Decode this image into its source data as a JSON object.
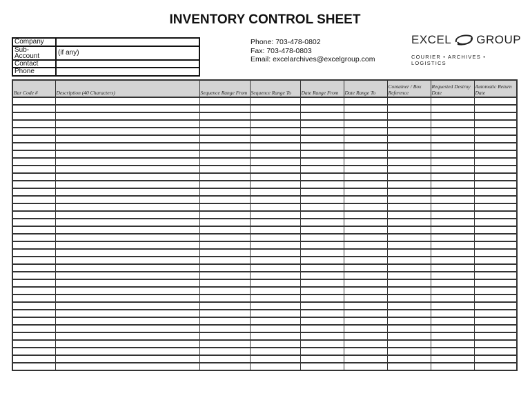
{
  "title": "INVENTORY CONTROL SHEET",
  "info_fields": [
    {
      "label": "Company",
      "value": ""
    },
    {
      "label": "Sub-Account",
      "value": "(if any)"
    },
    {
      "label": "Contact",
      "value": ""
    },
    {
      "label": "Phone",
      "value": ""
    }
  ],
  "contact": {
    "phone": "Phone:  703-478-0802",
    "fax": "Fax:  703-478-0803",
    "email": "Email: excelarchives@excelgroup.com"
  },
  "logo": {
    "left": "EXCEL",
    "right": "GROUP",
    "tagline": "COURIER • ARCHIVES • LOGISTICS",
    "icon": "swirl-logo-icon"
  },
  "table": {
    "columns": [
      {
        "label": "Bar Code #"
      },
      {
        "label": "Description (40 Characters)"
      },
      {
        "label": "Sequence Range From"
      },
      {
        "label": "Sequence Range To"
      },
      {
        "label": "Date Range From"
      },
      {
        "label": "Date Range To"
      },
      {
        "label": "Container / Box Reference"
      },
      {
        "label": "Requested Destroy Date"
      },
      {
        "label": "Automatic Return Date"
      }
    ],
    "header_color": "#d4d4d4"
  }
}
